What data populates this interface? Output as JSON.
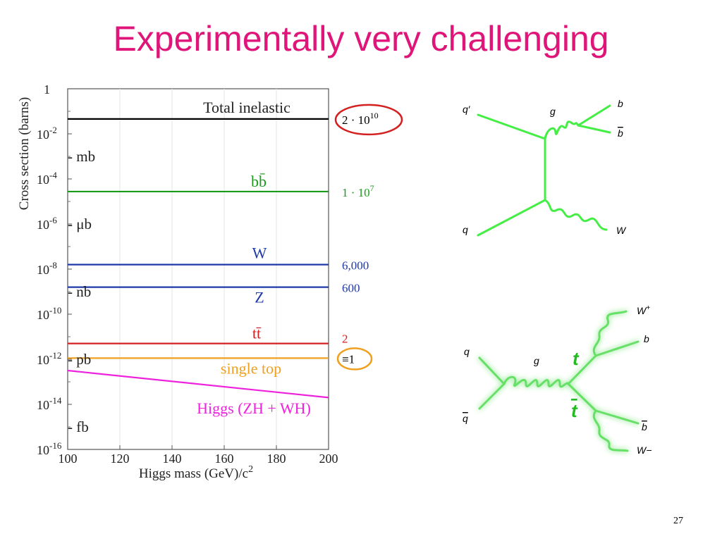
{
  "slide": {
    "title": "Experimentally very challenging",
    "page_number": "27"
  },
  "chart_data": {
    "type": "line",
    "xlabel": "Higgs mass (GeV)/c",
    "xlabel_sup": "2",
    "ylabel": "Cross section (barns)",
    "xlim": [
      100,
      200
    ],
    "ylim_log10": [
      -16,
      0
    ],
    "x_ticks": [
      "100",
      "120",
      "140",
      "160",
      "180",
      "200"
    ],
    "x_tick_values": [
      100,
      120,
      140,
      160,
      180,
      200
    ],
    "y_ticks": [
      {
        "exp": 0,
        "base": "1",
        "sup": ""
      },
      {
        "exp": -2,
        "base": "10",
        "sup": "-2"
      },
      {
        "exp": -4,
        "base": "10",
        "sup": "-4"
      },
      {
        "exp": -6,
        "base": "10",
        "sup": "-6"
      },
      {
        "exp": -8,
        "base": "10",
        "sup": "-8"
      },
      {
        "exp": -10,
        "base": "10",
        "sup": "-10"
      },
      {
        "exp": -12,
        "base": "10",
        "sup": "-12"
      },
      {
        "exp": -14,
        "base": "10",
        "sup": "-14"
      },
      {
        "exp": -16,
        "base": "10",
        "sup": "-16"
      }
    ],
    "unit_markers": [
      {
        "label": "- mb",
        "exp": -3
      },
      {
        "label": "- μb",
        "exp": -6
      },
      {
        "label": "- nb",
        "exp": -9
      },
      {
        "label": "- pb",
        "exp": -12
      },
      {
        "label": "- fb",
        "exp": -15
      }
    ],
    "series": [
      {
        "name": "Total inelastic",
        "color": "#000000",
        "x": [
          100,
          200
        ],
        "log10_y": [
          -1.34,
          -1.34
        ],
        "rate_base": "2 · 10",
        "rate_sup": "10",
        "rate_color": "#000000",
        "circle_color": "#d42020"
      },
      {
        "name": "bb̄",
        "color": "#1a9a1a",
        "x": [
          100,
          200
        ],
        "log10_y": [
          -4.56,
          -4.56
        ],
        "rate_base": "1 · 10",
        "rate_sup": "7",
        "rate_color": "#1a9a1a"
      },
      {
        "name": "W",
        "color": "#1e3aa8",
        "x": [
          100,
          200
        ],
        "log10_y": [
          -7.8,
          -7.8
        ],
        "rate_base": "6,000",
        "rate_sup": "",
        "rate_color": "#1e3aa8"
      },
      {
        "name": "Z",
        "color": "#1e3aa8",
        "x": [
          100,
          200
        ],
        "log10_y": [
          -8.8,
          -8.8
        ],
        "rate_base": "600",
        "rate_sup": "",
        "rate_color": "#1e3aa8"
      },
      {
        "name": "tt̄",
        "color": "#d42020",
        "x": [
          100,
          200
        ],
        "log10_y": [
          -11.3,
          -11.3
        ],
        "rate_base": "2",
        "rate_sup": "",
        "rate_color": "#d42020"
      },
      {
        "name": "single top",
        "color": "#f0a020",
        "x": [
          100,
          200
        ],
        "log10_y": [
          -11.95,
          -11.95
        ],
        "rate_base": "≡1",
        "rate_sup": "",
        "rate_color": "#000000",
        "circle_color": "#f0a020"
      },
      {
        "name": "Higgs (ZH + WH)",
        "color": "#ee22dd",
        "x": [
          100,
          200
        ],
        "log10_y": [
          -12.5,
          -13.7
        ],
        "rate_base": "",
        "rate_sup": "",
        "rate_color": "#ee22dd"
      }
    ]
  },
  "diagram_top": {
    "labels": {
      "q_prime": "q′",
      "g": "g",
      "b": "b",
      "b_bar": "b",
      "q": "q",
      "W": "W"
    }
  },
  "diagram_bottom": {
    "labels": {
      "W_plus": "W",
      "W_plus_sup": "+",
      "b": "b",
      "q": "q",
      "g": "g",
      "t": "t",
      "t_bar": "t",
      "q_bar": "q",
      "b_bar": "b",
      "W_minus": "W−"
    }
  }
}
